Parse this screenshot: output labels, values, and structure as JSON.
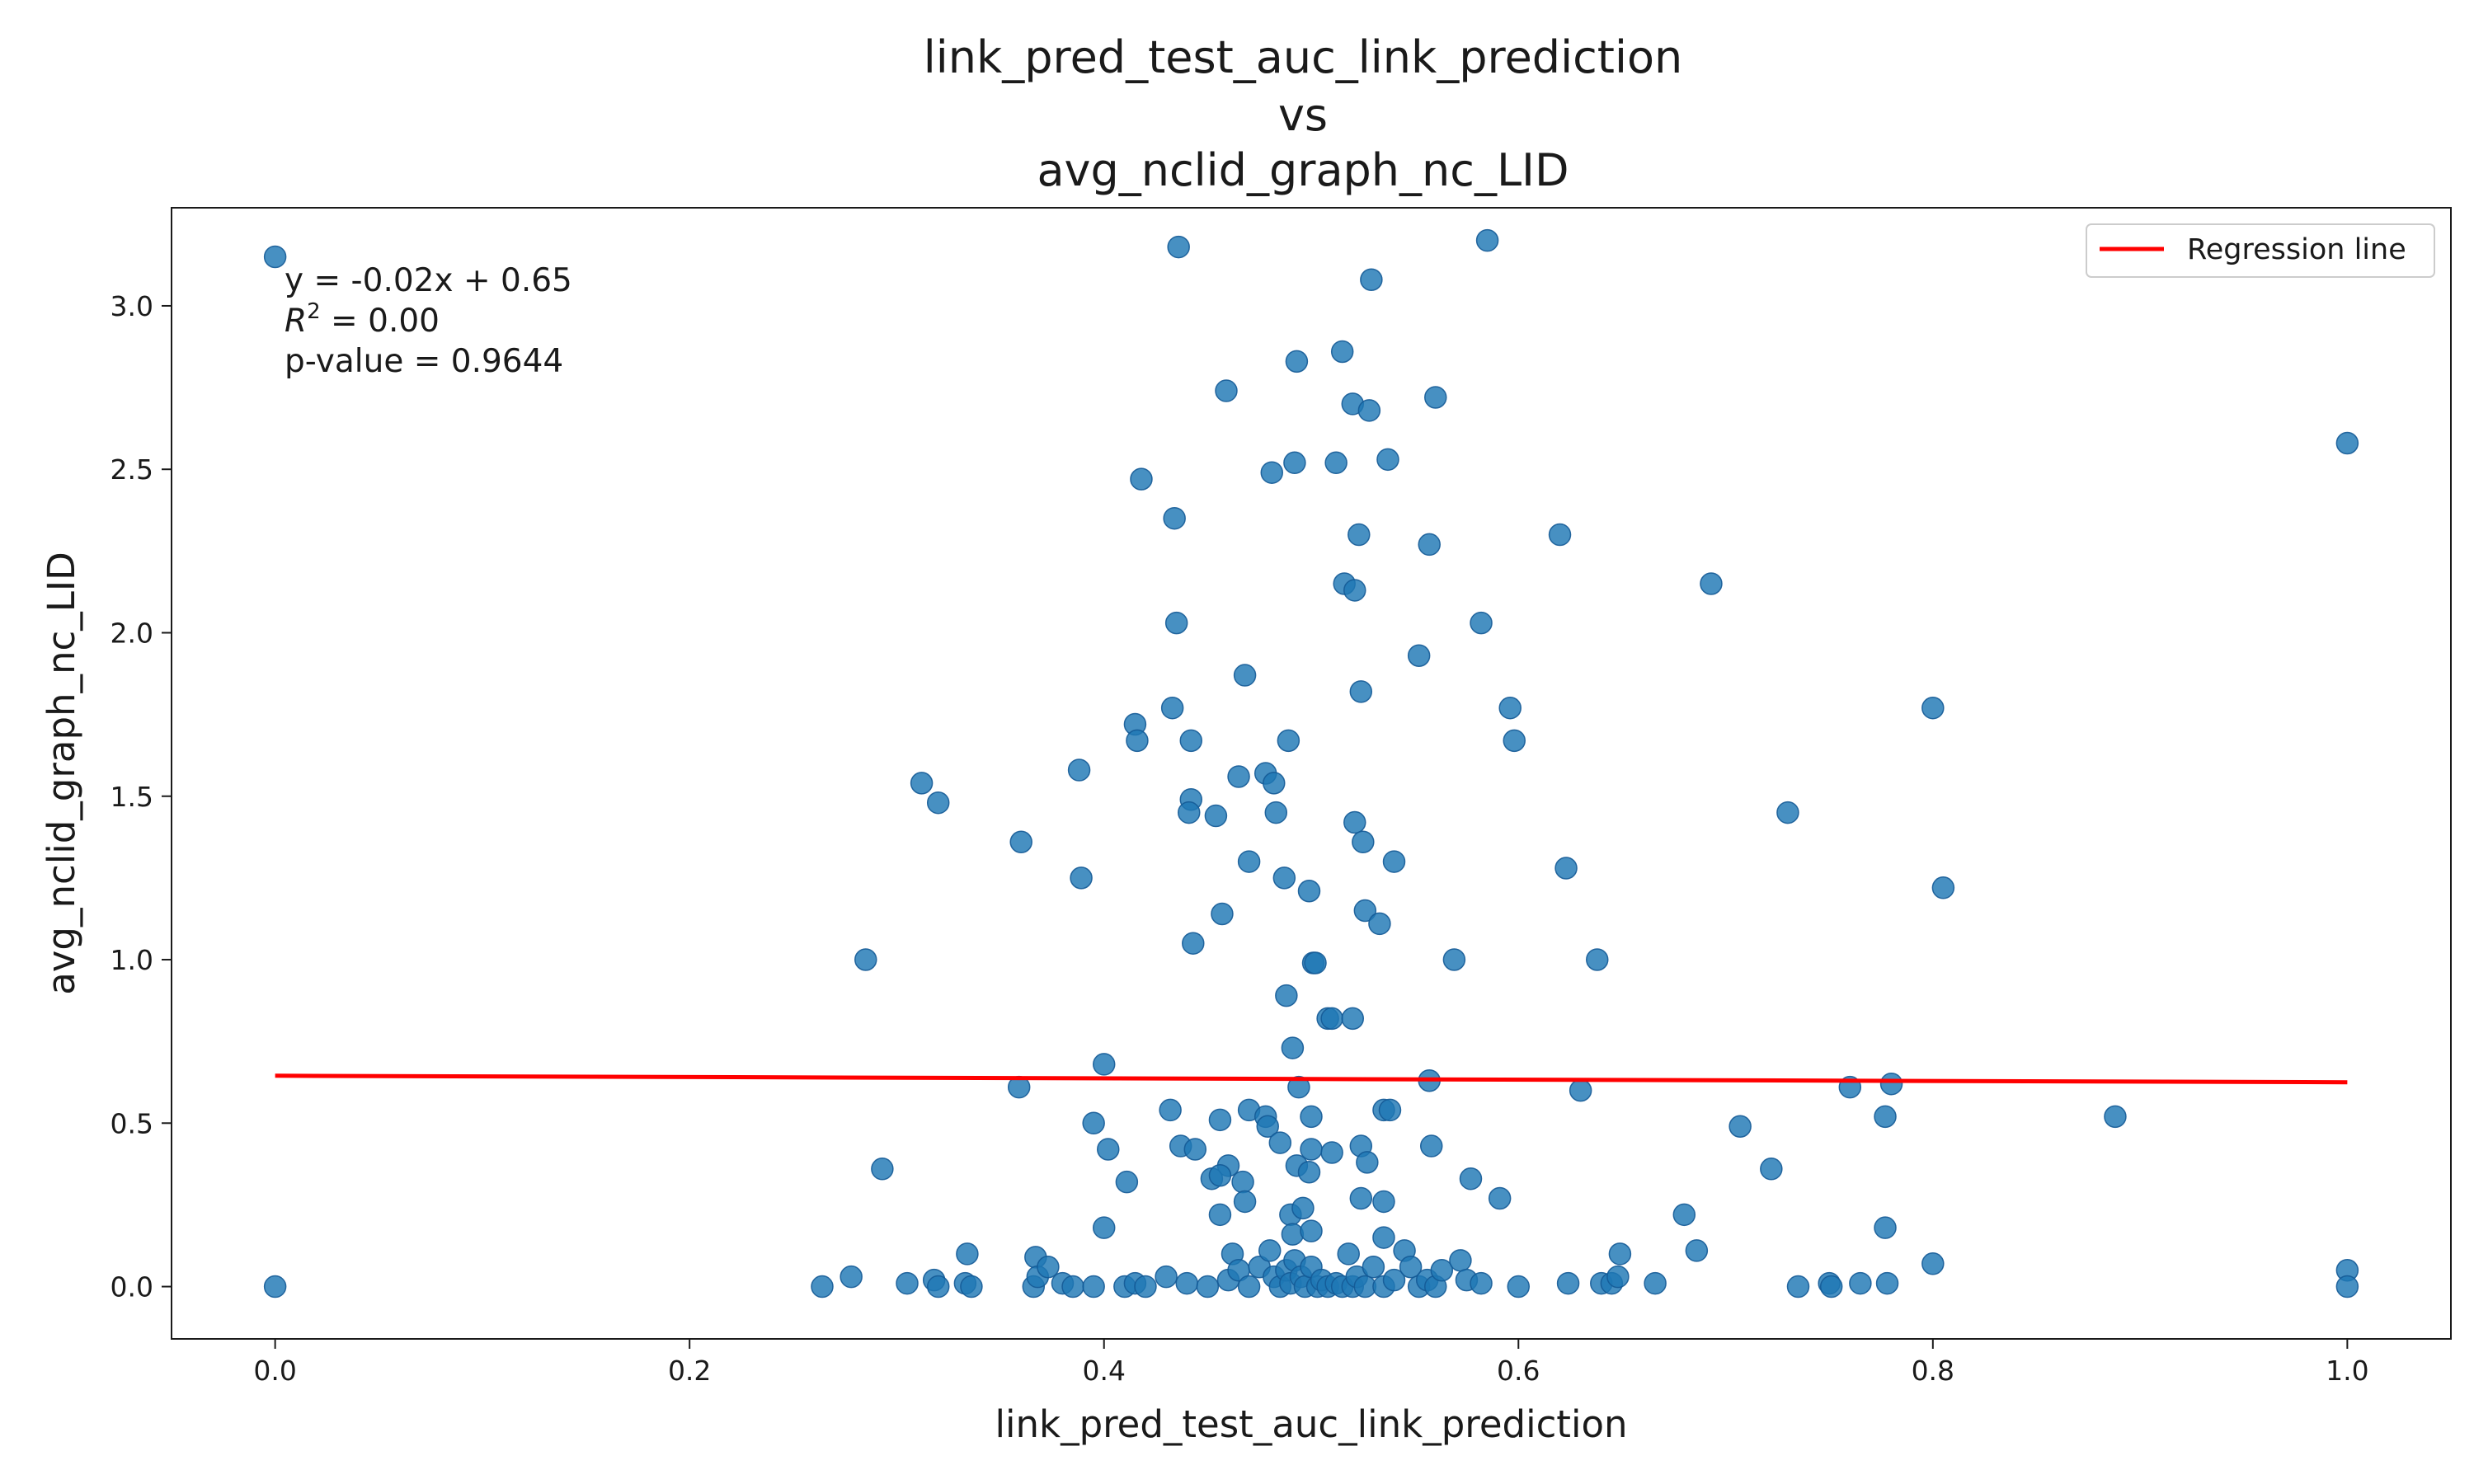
{
  "chart_data": {
    "type": "scatter",
    "title_lines": [
      "link_pred_test_auc_link_prediction",
      "vs",
      "avg_nclid_graph_nc_LID"
    ],
    "xlabel": "link_pred_test_auc_link_prediction",
    "ylabel": "avg_nclid_graph_nc_LID",
    "xlim": [
      -0.05,
      1.05
    ],
    "ylim": [
      -0.16,
      3.3
    ],
    "xticks": [
      0.0,
      0.2,
      0.4,
      0.6,
      0.8,
      1.0
    ],
    "xtick_labels": [
      "0.0",
      "0.2",
      "0.4",
      "0.6",
      "0.8",
      "1.0"
    ],
    "yticks": [
      0.0,
      0.5,
      1.0,
      1.5,
      2.0,
      2.5,
      3.0
    ],
    "ytick_labels": [
      "0.0",
      "0.5",
      "1.0",
      "1.5",
      "2.0",
      "2.5",
      "3.0"
    ],
    "grid": false,
    "legend": {
      "placement": "top-right",
      "entries": [
        "Regression line"
      ]
    },
    "annotation": {
      "equation": "y = -0.02x + 0.65",
      "r2_label": "R",
      "r2_sup": "2",
      "r2_value": " = 0.00",
      "pvalue": "p-value = 0.9644"
    },
    "colors": {
      "points": "#1f77b4",
      "regression": "#ff0000"
    },
    "regression": {
      "slope": -0.02,
      "intercept": 0.645,
      "x_range": [
        0.0,
        1.0
      ]
    },
    "series": [
      {
        "name": "",
        "points": [
          [
            0.0,
            3.15
          ],
          [
            0.0,
            0.0
          ],
          [
            0.436,
            3.18
          ],
          [
            0.585,
            3.2
          ],
          [
            0.529,
            3.08
          ],
          [
            0.493,
            2.83
          ],
          [
            0.515,
            2.86
          ],
          [
            0.459,
            2.74
          ],
          [
            0.52,
            2.7
          ],
          [
            0.528,
            2.68
          ],
          [
            0.56,
            2.72
          ],
          [
            0.418,
            2.47
          ],
          [
            0.481,
            2.49
          ],
          [
            0.492,
            2.52
          ],
          [
            0.512,
            2.52
          ],
          [
            0.537,
            2.53
          ],
          [
            1.0,
            2.58
          ],
          [
            0.434,
            2.35
          ],
          [
            0.523,
            2.3
          ],
          [
            0.557,
            2.27
          ],
          [
            0.62,
            2.3
          ],
          [
            0.516,
            2.15
          ],
          [
            0.521,
            2.13
          ],
          [
            0.693,
            2.15
          ],
          [
            0.435,
            2.03
          ],
          [
            0.582,
            2.03
          ],
          [
            0.552,
            1.93
          ],
          [
            0.468,
            1.87
          ],
          [
            0.524,
            1.82
          ],
          [
            0.596,
            1.77
          ],
          [
            0.8,
            1.77
          ],
          [
            0.433,
            1.77
          ],
          [
            0.415,
            1.72
          ],
          [
            0.416,
            1.67
          ],
          [
            0.442,
            1.67
          ],
          [
            0.489,
            1.67
          ],
          [
            0.598,
            1.67
          ],
          [
            0.312,
            1.54
          ],
          [
            0.32,
            1.48
          ],
          [
            0.388,
            1.58
          ],
          [
            0.478,
            1.57
          ],
          [
            0.482,
            1.54
          ],
          [
            0.465,
            1.56
          ],
          [
            0.442,
            1.49
          ],
          [
            0.441,
            1.45
          ],
          [
            0.454,
            1.44
          ],
          [
            0.483,
            1.45
          ],
          [
            0.521,
            1.42
          ],
          [
            0.73,
            1.45
          ],
          [
            0.36,
            1.36
          ],
          [
            0.525,
            1.36
          ],
          [
            0.389,
            1.25
          ],
          [
            0.47,
            1.3
          ],
          [
            0.487,
            1.25
          ],
          [
            0.54,
            1.3
          ],
          [
            0.623,
            1.28
          ],
          [
            0.805,
            1.22
          ],
          [
            0.499,
            1.21
          ],
          [
            0.457,
            1.14
          ],
          [
            0.526,
            1.15
          ],
          [
            0.533,
            1.11
          ],
          [
            0.285,
            1.0
          ],
          [
            0.443,
            1.05
          ],
          [
            0.501,
            0.99
          ],
          [
            0.502,
            0.99
          ],
          [
            0.569,
            1.0
          ],
          [
            0.638,
            1.0
          ],
          [
            0.488,
            0.89
          ],
          [
            0.508,
            0.82
          ],
          [
            0.51,
            0.82
          ],
          [
            0.52,
            0.82
          ],
          [
            0.4,
            0.68
          ],
          [
            0.491,
            0.73
          ],
          [
            0.359,
            0.61
          ],
          [
            0.494,
            0.61
          ],
          [
            0.557,
            0.63
          ],
          [
            0.63,
            0.6
          ],
          [
            0.76,
            0.61
          ],
          [
            0.78,
            0.62
          ],
          [
            0.432,
            0.54
          ],
          [
            0.47,
            0.54
          ],
          [
            0.535,
            0.54
          ],
          [
            0.538,
            0.54
          ],
          [
            0.395,
            0.5
          ],
          [
            0.456,
            0.51
          ],
          [
            0.478,
            0.52
          ],
          [
            0.479,
            0.49
          ],
          [
            0.5,
            0.52
          ],
          [
            0.707,
            0.49
          ],
          [
            0.777,
            0.52
          ],
          [
            0.888,
            0.52
          ],
          [
            0.402,
            0.42
          ],
          [
            0.437,
            0.43
          ],
          [
            0.444,
            0.42
          ],
          [
            0.485,
            0.44
          ],
          [
            0.5,
            0.42
          ],
          [
            0.51,
            0.41
          ],
          [
            0.524,
            0.43
          ],
          [
            0.558,
            0.43
          ],
          [
            0.293,
            0.36
          ],
          [
            0.411,
            0.32
          ],
          [
            0.46,
            0.37
          ],
          [
            0.452,
            0.33
          ],
          [
            0.456,
            0.34
          ],
          [
            0.467,
            0.32
          ],
          [
            0.493,
            0.37
          ],
          [
            0.499,
            0.35
          ],
          [
            0.527,
            0.38
          ],
          [
            0.722,
            0.36
          ],
          [
            0.468,
            0.26
          ],
          [
            0.524,
            0.27
          ],
          [
            0.535,
            0.26
          ],
          [
            0.577,
            0.33
          ],
          [
            0.591,
            0.27
          ],
          [
            0.4,
            0.18
          ],
          [
            0.456,
            0.22
          ],
          [
            0.49,
            0.22
          ],
          [
            0.496,
            0.24
          ],
          [
            0.491,
            0.16
          ],
          [
            0.5,
            0.17
          ],
          [
            0.535,
            0.15
          ],
          [
            0.68,
            0.22
          ],
          [
            0.777,
            0.18
          ],
          [
            0.278,
            0.03
          ],
          [
            0.264,
            0.0
          ],
          [
            0.305,
            0.01
          ],
          [
            0.318,
            0.02
          ],
          [
            0.32,
            0.0
          ],
          [
            0.333,
            0.01
          ],
          [
            0.334,
            0.1
          ],
          [
            0.336,
            0.0
          ],
          [
            0.366,
            0.0
          ],
          [
            0.367,
            0.09
          ],
          [
            0.368,
            0.03
          ],
          [
            0.373,
            0.06
          ],
          [
            0.38,
            0.01
          ],
          [
            0.385,
            0.0
          ],
          [
            0.395,
            0.0
          ],
          [
            0.41,
            0.0
          ],
          [
            0.415,
            0.01
          ],
          [
            0.42,
            0.0
          ],
          [
            0.43,
            0.03
          ],
          [
            0.44,
            0.01
          ],
          [
            0.45,
            0.0
          ],
          [
            0.46,
            0.02
          ],
          [
            0.462,
            0.1
          ],
          [
            0.465,
            0.05
          ],
          [
            0.47,
            0.0
          ],
          [
            0.475,
            0.06
          ],
          [
            0.48,
            0.11
          ],
          [
            0.482,
            0.03
          ],
          [
            0.485,
            0.0
          ],
          [
            0.488,
            0.05
          ],
          [
            0.49,
            0.01
          ],
          [
            0.492,
            0.08
          ],
          [
            0.495,
            0.03
          ],
          [
            0.497,
            0.0
          ],
          [
            0.5,
            0.06
          ],
          [
            0.503,
            0.0
          ],
          [
            0.505,
            0.02
          ],
          [
            0.508,
            0.0
          ],
          [
            0.512,
            0.01
          ],
          [
            0.515,
            0.0
          ],
          [
            0.518,
            0.1
          ],
          [
            0.52,
            0.0
          ],
          [
            0.522,
            0.03
          ],
          [
            0.526,
            0.0
          ],
          [
            0.53,
            0.06
          ],
          [
            0.535,
            0.0
          ],
          [
            0.54,
            0.02
          ],
          [
            0.545,
            0.11
          ],
          [
            0.548,
            0.06
          ],
          [
            0.552,
            0.0
          ],
          [
            0.556,
            0.02
          ],
          [
            0.56,
            0.0
          ],
          [
            0.563,
            0.05
          ],
          [
            0.572,
            0.08
          ],
          [
            0.575,
            0.02
          ],
          [
            0.582,
            0.01
          ],
          [
            0.6,
            0.0
          ],
          [
            0.624,
            0.01
          ],
          [
            0.64,
            0.01
          ],
          [
            0.645,
            0.01
          ],
          [
            0.648,
            0.03
          ],
          [
            0.649,
            0.1
          ],
          [
            0.666,
            0.01
          ],
          [
            0.686,
            0.11
          ],
          [
            0.735,
            0.0
          ],
          [
            0.75,
            0.01
          ],
          [
            0.751,
            0.0
          ],
          [
            0.765,
            0.01
          ],
          [
            0.778,
            0.01
          ],
          [
            0.8,
            0.07
          ],
          [
            1.0,
            0.05
          ],
          [
            1.0,
            0.0
          ]
        ]
      }
    ]
  }
}
